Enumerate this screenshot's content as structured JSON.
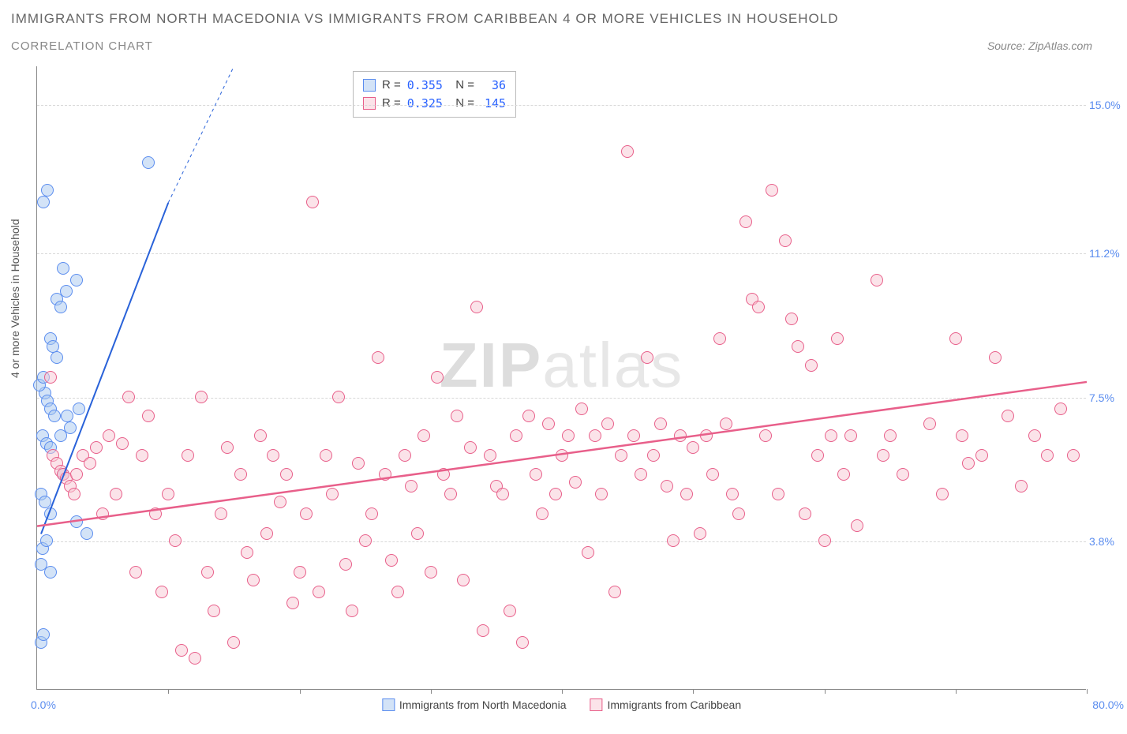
{
  "title_main": "IMMIGRANTS FROM NORTH MACEDONIA VS IMMIGRANTS FROM CARIBBEAN 4 OR MORE VEHICLES IN HOUSEHOLD",
  "title_sub": "CORRELATION CHART",
  "source": "Source: ZipAtlas.com",
  "watermark_bold": "ZIP",
  "watermark_light": "atlas",
  "chart": {
    "type": "scatter",
    "background_color": "#ffffff",
    "grid_color": "#d8d8d8",
    "xlim": [
      0,
      80
    ],
    "ylim": [
      0,
      16
    ],
    "x_axis": {
      "min_label": "0.0%",
      "max_label": "80.0%",
      "tick_positions_pct": [
        10,
        20,
        30,
        40,
        50,
        60,
        70,
        80
      ]
    },
    "y_axis": {
      "title": "4 or more Vehicles in Household",
      "gridlines": [
        {
          "value": 3.8,
          "label": "3.8%"
        },
        {
          "value": 7.5,
          "label": "7.5%"
        },
        {
          "value": 11.2,
          "label": "11.2%"
        },
        {
          "value": 15.0,
          "label": "15.0%"
        }
      ]
    },
    "series": [
      {
        "id": "macedonia",
        "label": "Immigrants from North Macedonia",
        "R": "0.355",
        "N": "36",
        "fill": "#a8c8f0",
        "stroke": "#5b8def",
        "marker_radius": 8,
        "trend": {
          "x1": 0.3,
          "y1": 4.0,
          "x2_solid": 10,
          "y2_solid": 12.5,
          "x2_dash": 15,
          "y2_dash": 16,
          "stroke": "#2962d9",
          "width": 2
        },
        "points": [
          [
            0.5,
            12.5
          ],
          [
            0.8,
            12.8
          ],
          [
            8.5,
            13.5
          ],
          [
            2.0,
            10.8
          ],
          [
            3.0,
            10.5
          ],
          [
            2.2,
            10.2
          ],
          [
            1.5,
            10.0
          ],
          [
            1.8,
            9.8
          ],
          [
            1.0,
            9.0
          ],
          [
            1.2,
            8.8
          ],
          [
            1.5,
            8.5
          ],
          [
            0.6,
            7.6
          ],
          [
            0.8,
            7.4
          ],
          [
            1.0,
            7.2
          ],
          [
            1.3,
            7.0
          ],
          [
            2.3,
            7.0
          ],
          [
            3.2,
            7.2
          ],
          [
            0.4,
            6.5
          ],
          [
            0.7,
            6.3
          ],
          [
            1.0,
            6.2
          ],
          [
            1.8,
            6.5
          ],
          [
            2.5,
            6.7
          ],
          [
            0.3,
            5.0
          ],
          [
            0.6,
            4.8
          ],
          [
            1.0,
            4.5
          ],
          [
            3.0,
            4.3
          ],
          [
            0.4,
            3.6
          ],
          [
            0.7,
            3.8
          ],
          [
            3.8,
            4.0
          ],
          [
            0.3,
            3.2
          ],
          [
            1.0,
            3.0
          ],
          [
            0.3,
            1.2
          ],
          [
            0.5,
            1.4
          ],
          [
            0.2,
            7.8
          ],
          [
            0.5,
            8.0
          ],
          [
            2.0,
            5.5
          ]
        ]
      },
      {
        "id": "caribbean",
        "label": "Immigrants from Caribbean",
        "R": "0.325",
        "N": "145",
        "fill": "#f8c8d4",
        "stroke": "#e85f8a",
        "marker_radius": 8,
        "trend": {
          "x1": 0,
          "y1": 4.2,
          "x2_solid": 80,
          "y2_solid": 7.9,
          "stroke": "#e85f8a",
          "width": 2.5
        },
        "points": [
          [
            1.0,
            8.0
          ],
          [
            1.2,
            6.0
          ],
          [
            1.5,
            5.8
          ],
          [
            1.8,
            5.6
          ],
          [
            2.0,
            5.5
          ],
          [
            2.2,
            5.4
          ],
          [
            2.5,
            5.2
          ],
          [
            2.8,
            5.0
          ],
          [
            3.0,
            5.5
          ],
          [
            3.5,
            6.0
          ],
          [
            4.0,
            5.8
          ],
          [
            4.5,
            6.2
          ],
          [
            5.0,
            4.5
          ],
          [
            5.5,
            6.5
          ],
          [
            6.0,
            5.0
          ],
          [
            6.5,
            6.3
          ],
          [
            7.0,
            7.5
          ],
          [
            7.5,
            3.0
          ],
          [
            8.0,
            6.0
          ],
          [
            8.5,
            7.0
          ],
          [
            9.0,
            4.5
          ],
          [
            9.5,
            2.5
          ],
          [
            10.0,
            5.0
          ],
          [
            10.5,
            3.8
          ],
          [
            11.0,
            1.0
          ],
          [
            11.5,
            6.0
          ],
          [
            12.0,
            0.8
          ],
          [
            12.5,
            7.5
          ],
          [
            13.0,
            3.0
          ],
          [
            13.5,
            2.0
          ],
          [
            14.0,
            4.5
          ],
          [
            14.5,
            6.2
          ],
          [
            15.0,
            1.2
          ],
          [
            15.5,
            5.5
          ],
          [
            16.0,
            3.5
          ],
          [
            16.5,
            2.8
          ],
          [
            17.0,
            6.5
          ],
          [
            17.5,
            4.0
          ],
          [
            18.0,
            6.0
          ],
          [
            18.5,
            4.8
          ],
          [
            19.0,
            5.5
          ],
          [
            19.5,
            2.2
          ],
          [
            20.0,
            3.0
          ],
          [
            20.5,
            4.5
          ],
          [
            21.0,
            12.5
          ],
          [
            21.5,
            2.5
          ],
          [
            22.0,
            6.0
          ],
          [
            22.5,
            5.0
          ],
          [
            23.0,
            7.5
          ],
          [
            23.5,
            3.2
          ],
          [
            24.0,
            2.0
          ],
          [
            24.5,
            5.8
          ],
          [
            25.0,
            3.8
          ],
          [
            25.5,
            4.5
          ],
          [
            26.0,
            8.5
          ],
          [
            26.5,
            5.5
          ],
          [
            27.0,
            3.3
          ],
          [
            27.5,
            2.5
          ],
          [
            28.0,
            6.0
          ],
          [
            28.5,
            5.2
          ],
          [
            29.0,
            4.0
          ],
          [
            29.5,
            6.5
          ],
          [
            30.0,
            3.0
          ],
          [
            30.5,
            8.0
          ],
          [
            31.0,
            5.5
          ],
          [
            31.5,
            5.0
          ],
          [
            32.0,
            7.0
          ],
          [
            32.5,
            2.8
          ],
          [
            33.0,
            6.2
          ],
          [
            33.5,
            9.8
          ],
          [
            34.0,
            1.5
          ],
          [
            34.5,
            6.0
          ],
          [
            35.0,
            5.2
          ],
          [
            35.5,
            5.0
          ],
          [
            36.0,
            2.0
          ],
          [
            36.5,
            6.5
          ],
          [
            37.0,
            1.2
          ],
          [
            37.5,
            7.0
          ],
          [
            38.0,
            5.5
          ],
          [
            38.5,
            4.5
          ],
          [
            39.0,
            6.8
          ],
          [
            39.5,
            5.0
          ],
          [
            40.0,
            6.0
          ],
          [
            40.5,
            6.5
          ],
          [
            41.0,
            5.3
          ],
          [
            41.5,
            7.2
          ],
          [
            42.0,
            3.5
          ],
          [
            42.5,
            6.5
          ],
          [
            43.0,
            5.0
          ],
          [
            43.5,
            6.8
          ],
          [
            44.0,
            2.5
          ],
          [
            44.5,
            6.0
          ],
          [
            45.0,
            13.8
          ],
          [
            45.5,
            6.5
          ],
          [
            46.0,
            5.5
          ],
          [
            46.5,
            8.5
          ],
          [
            47.0,
            6.0
          ],
          [
            47.5,
            6.8
          ],
          [
            48.0,
            5.2
          ],
          [
            48.5,
            3.8
          ],
          [
            49.0,
            6.5
          ],
          [
            49.5,
            5.0
          ],
          [
            50.0,
            6.2
          ],
          [
            50.5,
            4.0
          ],
          [
            51.0,
            6.5
          ],
          [
            51.5,
            5.5
          ],
          [
            52.0,
            9.0
          ],
          [
            52.5,
            6.8
          ],
          [
            53.0,
            5.0
          ],
          [
            53.5,
            4.5
          ],
          [
            54.0,
            12.0
          ],
          [
            54.5,
            10.0
          ],
          [
            55.0,
            9.8
          ],
          [
            55.5,
            6.5
          ],
          [
            56.0,
            12.8
          ],
          [
            56.5,
            5.0
          ],
          [
            57.0,
            11.5
          ],
          [
            57.5,
            9.5
          ],
          [
            58.0,
            8.8
          ],
          [
            58.5,
            4.5
          ],
          [
            59.0,
            8.3
          ],
          [
            59.5,
            6.0
          ],
          [
            60.0,
            3.8
          ],
          [
            60.5,
            6.5
          ],
          [
            61.0,
            9.0
          ],
          [
            61.5,
            5.5
          ],
          [
            62.0,
            6.5
          ],
          [
            62.5,
            4.2
          ],
          [
            64.0,
            10.5
          ],
          [
            64.5,
            6.0
          ],
          [
            65.0,
            6.5
          ],
          [
            66.0,
            5.5
          ],
          [
            68.0,
            6.8
          ],
          [
            69.0,
            5.0
          ],
          [
            70.0,
            9.0
          ],
          [
            70.5,
            6.5
          ],
          [
            71.0,
            5.8
          ],
          [
            72.0,
            6.0
          ],
          [
            73.0,
            8.5
          ],
          [
            74.0,
            7.0
          ],
          [
            75.0,
            5.2
          ],
          [
            76.0,
            6.5
          ],
          [
            77.0,
            6.0
          ],
          [
            78.0,
            7.2
          ],
          [
            79.0,
            6.0
          ]
        ]
      }
    ],
    "bottom_legend": [
      {
        "label": "Immigrants from North Macedonia",
        "fill": "#a8c8f0",
        "stroke": "#5b8def"
      },
      {
        "label": "Immigrants from Caribbean",
        "fill": "#f8c8d4",
        "stroke": "#e85f8a"
      }
    ]
  }
}
